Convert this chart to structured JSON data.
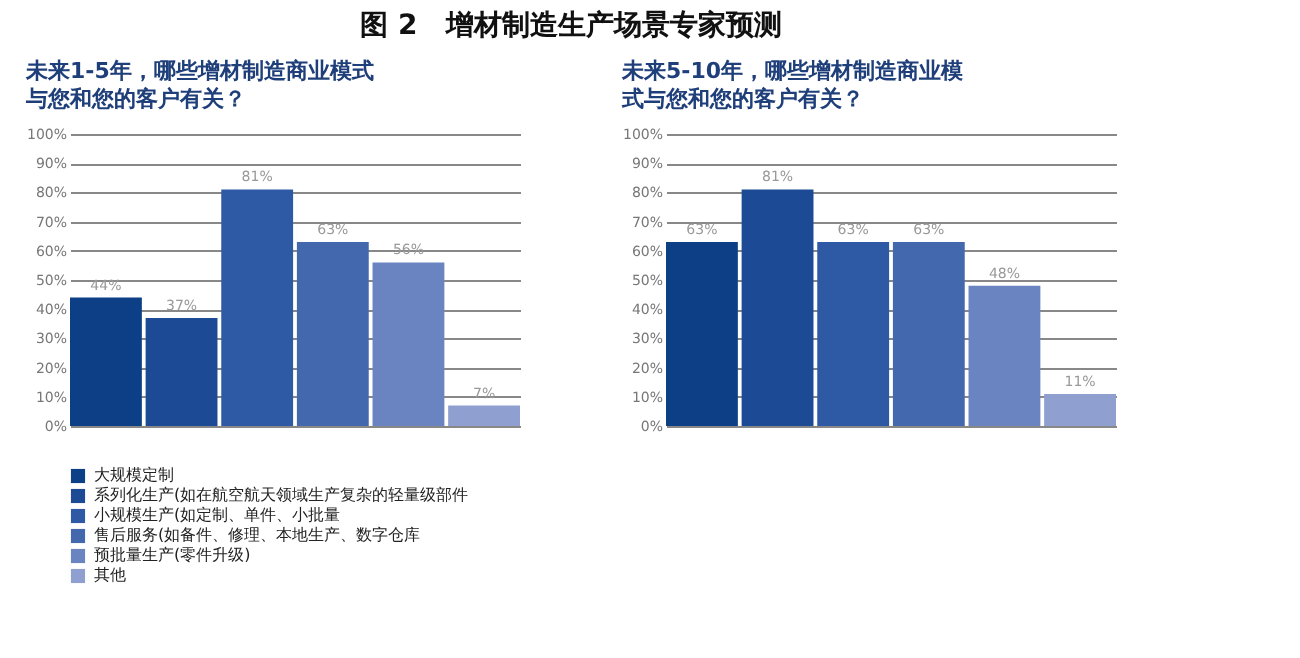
{
  "chart_data": [
    {
      "type": "bar",
      "title": "图 2　增材制造生产场景专家预测",
      "subtitle": "未来1-5年，哪些增材制造商业模式与您和您的客户有关？",
      "categories": [
        null
      ],
      "series": [
        {
          "name": "大规模定制",
          "color": "#0d3f86",
          "values": [
            44
          ],
          "value_labels": [
            "44%"
          ]
        },
        {
          "name": "系列化生产(如在航空航天领域生产复杂的轻量级部件",
          "color": "#1c4a94",
          "values": [
            37
          ],
          "value_labels": [
            "37%"
          ]
        },
        {
          "name": "小规模生产(如定制、单件、小批量",
          "color": "#2e5aa5",
          "values": [
            81
          ],
          "value_labels": [
            "81%"
          ]
        },
        {
          "name": "售后服务(如备件、修理、本地生产、数字仓库",
          "color": "#4468ad",
          "values": [
            63
          ],
          "value_labels": [
            "63%"
          ]
        },
        {
          "name": "预批量生产(零件升级)",
          "color": "#6a83c1",
          "values": [
            56
          ],
          "value_labels": [
            "56%"
          ]
        },
        {
          "name": "其他",
          "color": "#8e9fd0",
          "values": [
            7
          ],
          "value_labels": [
            "7%"
          ]
        }
      ],
      "ylim": [
        0,
        100
      ],
      "yticks": [
        {
          "value": 0,
          "label": "0%"
        },
        {
          "value": 10,
          "label": "10%"
        },
        {
          "value": 20,
          "label": "20%"
        },
        {
          "value": 30,
          "label": "30%"
        },
        {
          "value": 40,
          "label": "40%"
        },
        {
          "value": 50,
          "label": "50%"
        },
        {
          "value": 60,
          "label": "60%"
        },
        {
          "value": 70,
          "label": "70%"
        },
        {
          "value": 80,
          "label": "80%"
        },
        {
          "value": 90,
          "label": "90%"
        },
        {
          "value": 100,
          "label": "100%"
        }
      ],
      "grid": "y",
      "tick_labels": "y",
      "legend": "bottom"
    },
    {
      "type": "bar",
      "subtitle": "未来5-10年，哪些增材制造商业模式与您和您的客户有关？",
      "categories": [
        null
      ],
      "series": [
        {
          "name": "大规模定制",
          "color": "#0d3f86",
          "values": [
            63
          ],
          "value_labels": [
            "63%"
          ]
        },
        {
          "name": "系列化生产(如在航空航天领域生产复杂的轻量级部件",
          "color": "#1c4a94",
          "values": [
            81
          ],
          "value_labels": [
            "81%"
          ]
        },
        {
          "name": "小规模生产(如定制、单件、小批量",
          "color": "#2e5aa5",
          "values": [
            63
          ],
          "value_labels": [
            "63%"
          ]
        },
        {
          "name": "售后服务(如备件、修理、本地生产、数字仓库",
          "color": "#4468ad",
          "values": [
            63
          ],
          "value_labels": [
            "63%"
          ]
        },
        {
          "name": "预批量生产(零件升级)",
          "color": "#6a83c1",
          "values": [
            48
          ],
          "value_labels": [
            "48%"
          ]
        },
        {
          "name": "其他",
          "color": "#8e9fd0",
          "values": [
            11
          ],
          "value_labels": [
            "11%"
          ]
        }
      ],
      "ylim": [
        0,
        100
      ],
      "yticks": [
        {
          "value": 0,
          "label": "0%"
        },
        {
          "value": 10,
          "label": "10%"
        },
        {
          "value": 20,
          "label": "20%"
        },
        {
          "value": 30,
          "label": "30%"
        },
        {
          "value": 40,
          "label": "40%"
        },
        {
          "value": 50,
          "label": "50%"
        },
        {
          "value": 60,
          "label": "60%"
        },
        {
          "value": 70,
          "label": "70%"
        },
        {
          "value": 80,
          "label": "80%"
        },
        {
          "value": 90,
          "label": "90%"
        },
        {
          "value": 100,
          "label": "100%"
        }
      ],
      "grid": "y",
      "tick_labels": "y",
      "legend": "bottom"
    }
  ]
}
